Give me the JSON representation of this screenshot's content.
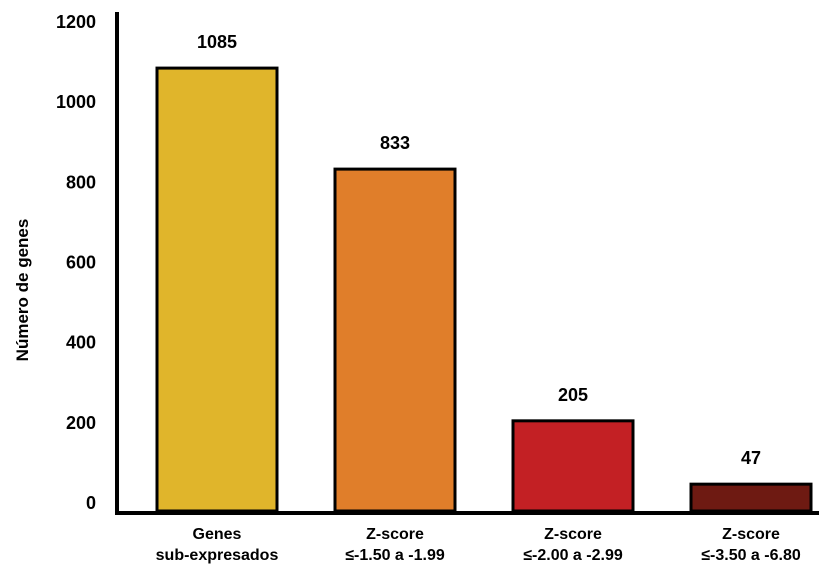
{
  "chart_data": {
    "type": "bar",
    "ylabel": "Número de genes",
    "xlabel": "",
    "ylim": [
      0,
      1200
    ],
    "yticks": [
      0,
      200,
      400,
      600,
      800,
      1000,
      1200
    ],
    "grid": false,
    "categories": [
      [
        "Genes",
        "sub-expresados"
      ],
      [
        "Z-score",
        "≤-1.50 a -1.99"
      ],
      [
        "Z-score",
        "≤-2.00 a -2.99"
      ],
      [
        "Z-score",
        "≤-3.50 a -6.80"
      ]
    ],
    "values": [
      1085,
      833,
      205,
      47
    ],
    "data_labels": [
      "1085",
      "833",
      "205",
      "47"
    ],
    "colors": [
      "#E0B52B",
      "#E07E2A",
      "#C32024",
      "#6E1A12"
    ]
  }
}
